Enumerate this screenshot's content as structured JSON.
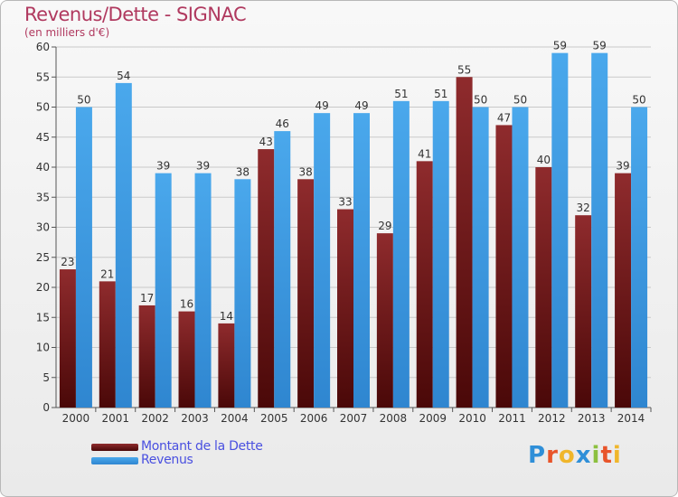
{
  "title": "Revenus/Dette - SIGNAC",
  "subtitle": "(en milliers d'€)",
  "logo": {
    "text": "Proxiti",
    "letter_colors": [
      "#2f8fd8",
      "#e8542a",
      "#f0b62b",
      "#2f8fd8",
      "#8cc03f",
      "#e8542a",
      "#f0b62b"
    ]
  },
  "chart_data": {
    "type": "bar",
    "categories": [
      "2000",
      "2001",
      "2002",
      "2003",
      "2004",
      "2005",
      "2006",
      "2007",
      "2008",
      "2009",
      "2010",
      "2011",
      "2012",
      "2013",
      "2014"
    ],
    "series": [
      {
        "name": "Montant de la Dette",
        "color": "#7a1b1f",
        "values": [
          23,
          21,
          17,
          16,
          14,
          43,
          38,
          33,
          29,
          41,
          55,
          47,
          40,
          32,
          39
        ]
      },
      {
        "name": "Revenus",
        "color": "#3c9de6",
        "values": [
          50,
          54,
          39,
          39,
          38,
          46,
          49,
          49,
          51,
          51,
          50,
          50,
          59,
          59,
          50
        ]
      }
    ],
    "ylim": [
      0,
      60
    ],
    "yticks": [
      0,
      5,
      10,
      15,
      20,
      25,
      30,
      35,
      40,
      45,
      50,
      55,
      60
    ],
    "grid": true,
    "legend_position": "bottom-left"
  }
}
